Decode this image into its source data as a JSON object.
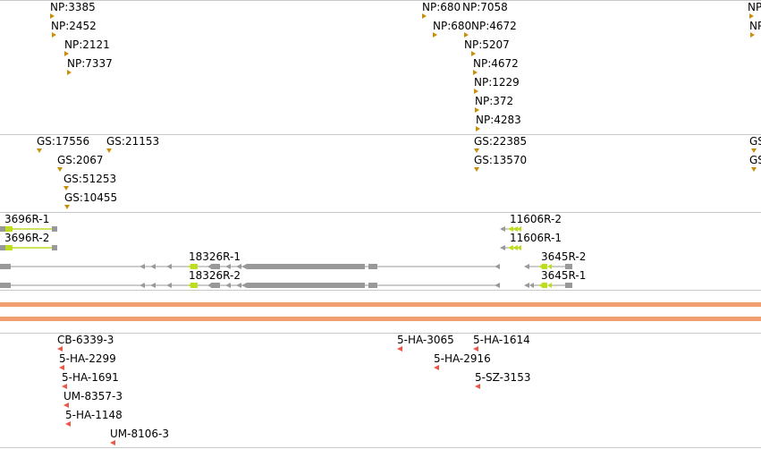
{
  "colors": {
    "np_marker": "#c8900a",
    "gs_marker": "#c8900a",
    "gene_gray": "#999999",
    "gene_green": "#bbdd22",
    "band_orange": "#f0a070",
    "red_marker": "#ee5544",
    "separator": "#c8c8c8"
  },
  "np_track": {
    "features": [
      "NP:3385",
      "NP:2452",
      "NP:2121",
      "NP:7337",
      "NP:680",
      "NP:7058",
      "NP:680",
      "NP:4672",
      "NP:5207",
      "NP:4672",
      "NP:1229",
      "NP:372",
      "NP:4283",
      "NP",
      "NP"
    ]
  },
  "gs_track": {
    "features": [
      "GS:17556",
      "GS:21153",
      "GS:2067",
      "GS:51253",
      "GS:10455",
      "GS:22385",
      "GS:13570",
      "GS",
      "GS"
    ]
  },
  "gene_track": {
    "genes": [
      "3696R-1",
      "3696R-2",
      "11606R-2",
      "11606R-1",
      "18326R-1",
      "18326R-2",
      "3645R-2",
      "3645R-1"
    ]
  },
  "bottom_track": {
    "features": [
      "CB-6339-3",
      "5-HA-2299",
      "5-HA-1691",
      "UM-8357-3",
      "5-HA-1148",
      "UM-8106-3",
      "5-HA-3065",
      "5-HA-1614",
      "5-HA-2916",
      "5-SZ-3153"
    ]
  }
}
